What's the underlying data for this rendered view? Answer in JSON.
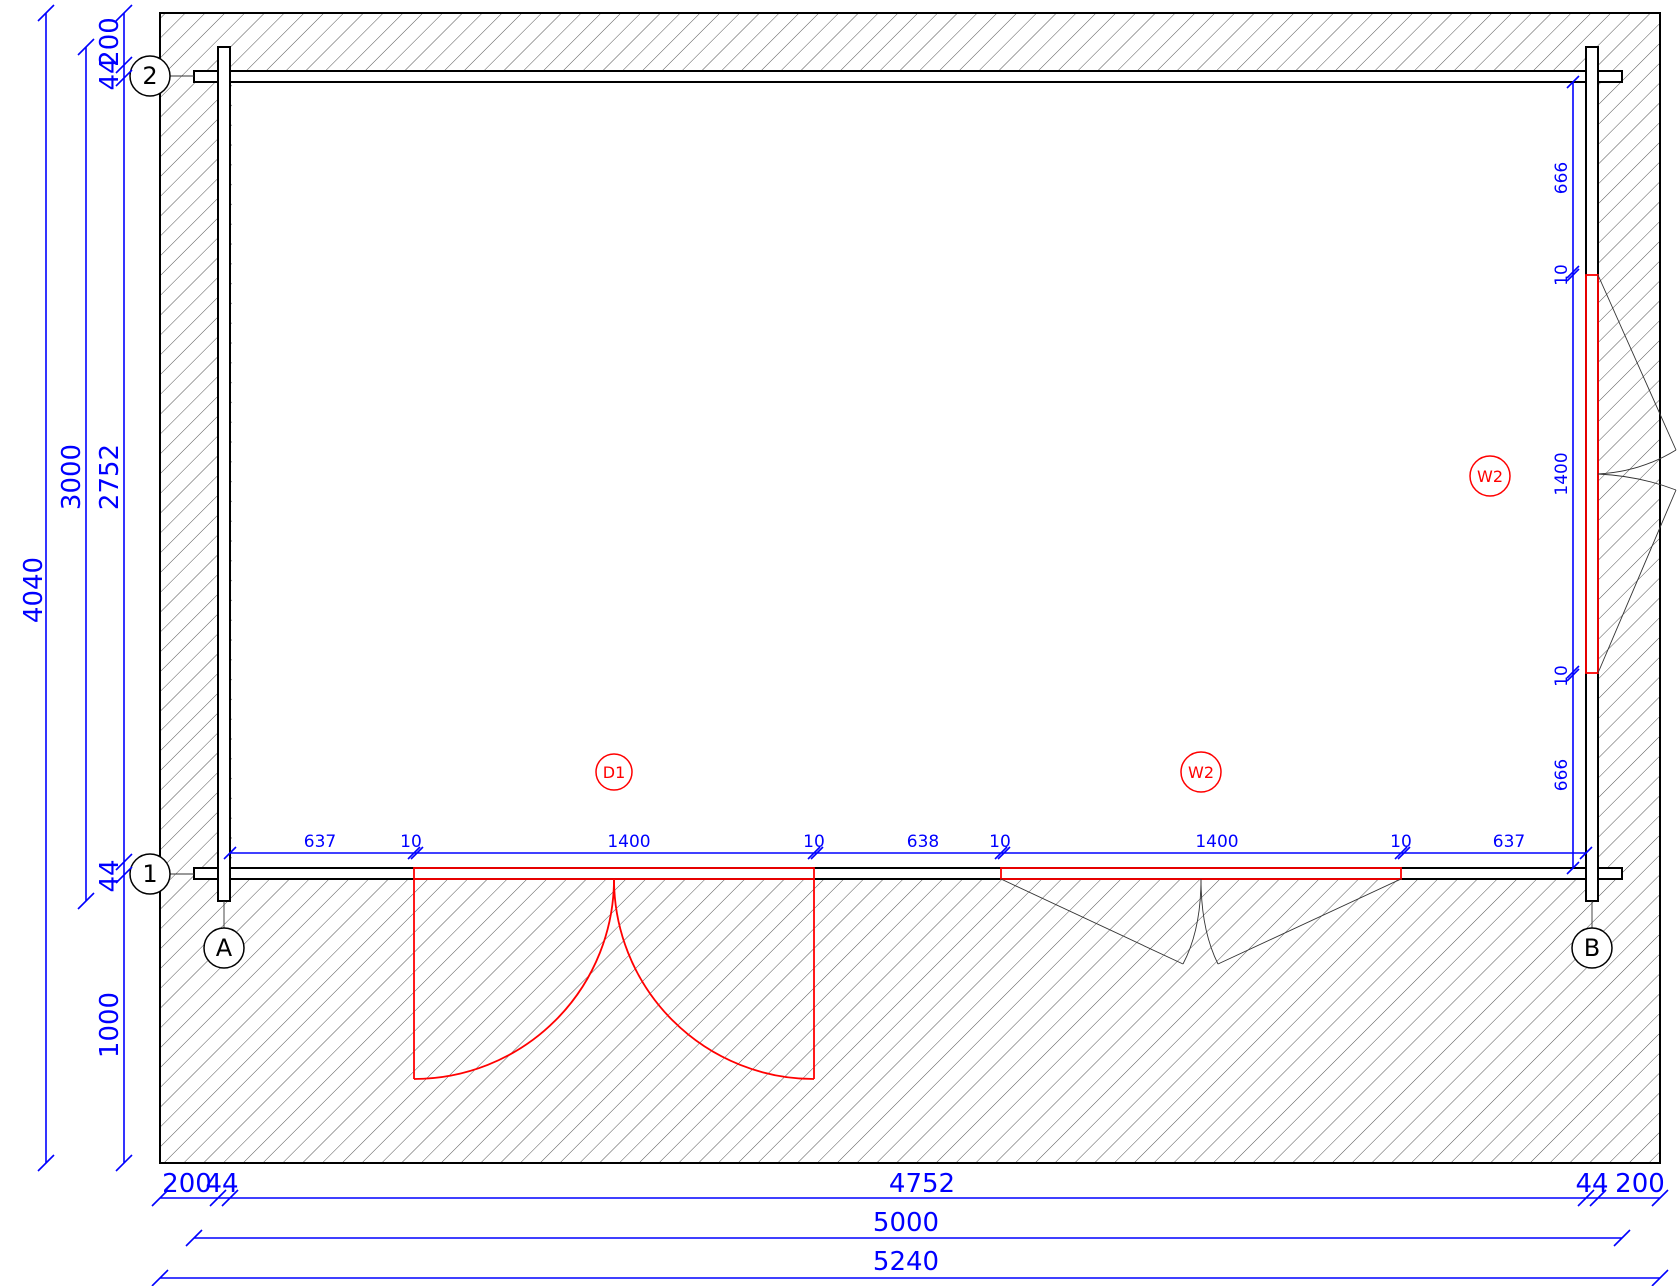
{
  "grid": {
    "axis_1": "1",
    "axis_2": "2",
    "axis_A": "A",
    "axis_B": "B"
  },
  "tags": {
    "door": "D1",
    "window_front": "W2",
    "window_side": "W2"
  },
  "dims": {
    "left_total": "4040",
    "left_3000": "3000",
    "left_2752": "2752",
    "left_44_top": "44",
    "left_200": "200",
    "left_44_bottom": "44",
    "left_1000": "1000",
    "front_637_left": "637",
    "front_10_a": "10",
    "front_1400_door": "1400",
    "front_10_b": "10",
    "front_638": "638",
    "front_10_c": "10",
    "front_1400_window": "1400",
    "front_10_d": "10",
    "front_637_right": "637",
    "side_666_top": "666",
    "side_10_top": "10",
    "side_1400": "1400",
    "side_10_bottom": "10",
    "side_666_bottom": "666",
    "bottom_200_left": "200",
    "bottom_44_left": "44",
    "bottom_4752": "4752",
    "bottom_44_right": "44",
    "bottom_200_right": "200",
    "bottom_5000": "5000",
    "bottom_5240": "5240"
  },
  "colors": {
    "dimension": "#0000ff",
    "opening": "#ff0000",
    "hatch": "#555555"
  }
}
